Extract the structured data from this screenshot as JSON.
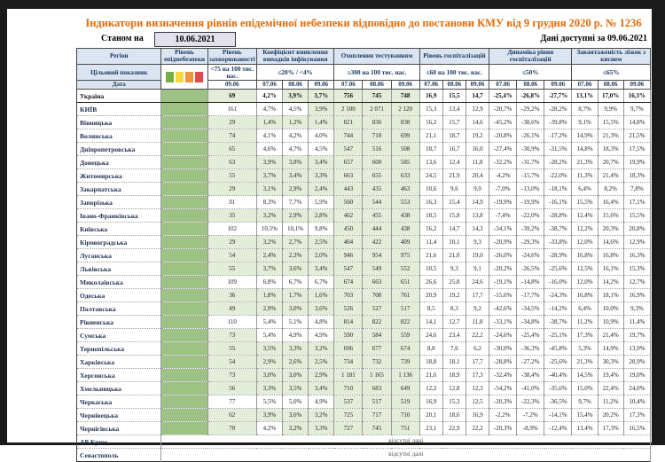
{
  "page": {
    "title": "Індикатори визначення рівнів епідемічної небезпеки відповідно до постанови КМУ від 9 грудня 2020 р. № 1236",
    "as_of_label": "Станом на",
    "as_of_date": "10.06.2021",
    "available_label": "Дані доступні за 09.06.2021"
  },
  "colors": {
    "title_orange": "#e26b0a",
    "header_blue": "#dbe5f1",
    "date_box_lavender": "#e4dfec",
    "epidemic_column_green": "#9dc284",
    "cell_ok_green": "#e3edd9",
    "legend": [
      "#76b041",
      "#f7d842",
      "#f0953c",
      "#dd4b4b"
    ]
  },
  "table": {
    "region_header": "Регіон",
    "target_row_label": "Цільовий показник",
    "date_row_label": "Дата",
    "groups": [
      {
        "title": "Рівень епіднебезпеки",
        "type": "legend"
      },
      {
        "title": "Рівень захворюваності",
        "target": "<75 на 100 тис. нас.",
        "dates": [
          "09.06"
        ]
      },
      {
        "title": "Коефіцієнт виявлення випадків інфікування",
        "target": "≤20% / <4%",
        "dates": [
          "07.06",
          "08.06",
          "09.06"
        ]
      },
      {
        "title": "Охоплення тестуванням",
        "target": "≥300 на 100 тис. нас.",
        "dates": [
          "07.06",
          "08.06",
          "09.06"
        ]
      },
      {
        "title": "Рівень госпіталізацій",
        "target": "≤60 на 100 тис. нас.",
        "dates": [
          "07.06",
          "08.06",
          "09.06"
        ]
      },
      {
        "title": "Динаміка рівня госпіталізацій",
        "target": "≤50%",
        "dates": [
          "07.06",
          "08.06",
          "09.06"
        ]
      },
      {
        "title": "Завантаженість ліжок з киснем",
        "target": "≤65%",
        "dates": [
          "07.06",
          "08.06",
          "09.06"
        ]
      }
    ],
    "rows": [
      {
        "region": "Україна",
        "bold": true,
        "ok": [
          true,
          false,
          true,
          true
        ],
        "values": [
          "69",
          "4,2%",
          "3,9%",
          "3,7%",
          "756",
          "745",
          "748",
          "16,9",
          "15,5",
          "14,7",
          "-25,4%",
          "-26,8%",
          "-27,7%",
          "13,1%",
          "17,0%",
          "16,3%"
        ]
      },
      {
        "region": "КИЇВ",
        "ok": [
          false,
          false,
          false,
          true
        ],
        "values": [
          "161",
          "4,7%",
          "4,5%",
          "3,9%",
          "2 100",
          "2 071",
          "2 120",
          "15,3",
          "13,4",
          "12,9",
          "-20,7%",
          "-29,2%",
          "-28,2%",
          "8,7%",
          "9,9%",
          "9,7%"
        ]
      },
      {
        "region": "Вінницька",
        "ok": [
          true,
          true,
          true,
          true
        ],
        "values": [
          "29",
          "1,4%",
          "1,2%",
          "1,4%",
          "821",
          "836",
          "838",
          "16,2",
          "15,7",
          "14,6",
          "-45,2%",
          "-38,6%",
          "-39,8%",
          "9,1%",
          "15,5%",
          "14,8%"
        ]
      },
      {
        "region": "Волинська",
        "ok": [
          true,
          false,
          false,
          false
        ],
        "values": [
          "74",
          "4,1%",
          "4,2%",
          "4,0%",
          "744",
          "710",
          "699",
          "21,1",
          "18,7",
          "19,2",
          "-20,8%",
          "-26,1%",
          "-17,2%",
          "14,9%",
          "21,3%",
          "21,5%"
        ]
      },
      {
        "region": "Дніпропетровська",
        "ok": [
          true,
          false,
          false,
          false
        ],
        "values": [
          "65",
          "4,6%",
          "4,7%",
          "4,5%",
          "547",
          "516",
          "508",
          "18,7",
          "16,7",
          "16,0",
          "-27,4%",
          "-30,9%",
          "-31,5%",
          "14,8%",
          "18,3%",
          "17,5%"
        ]
      },
      {
        "region": "Донецька",
        "ok": [
          true,
          true,
          true,
          true
        ],
        "values": [
          "63",
          "3,9%",
          "3,8%",
          "3,4%",
          "657",
          "600",
          "585",
          "13,6",
          "12,4",
          "11,8",
          "-32,2%",
          "-31,7%",
          "-28,2%",
          "21,3%",
          "20,7%",
          "19,9%"
        ]
      },
      {
        "region": "Житомирська",
        "ok": [
          true,
          true,
          true,
          true
        ],
        "values": [
          "55",
          "3,7%",
          "3,4%",
          "3,3%",
          "663",
          "655",
          "633",
          "24,5",
          "21,9",
          "20,4",
          "-4,2%",
          "-15,7%",
          "-22,0%",
          "11,3%",
          "21,4%",
          "18,3%"
        ]
      },
      {
        "region": "Закарпатська",
        "ok": [
          true,
          true,
          true,
          true
        ],
        "values": [
          "29",
          "3,1%",
          "2,9%",
          "2,4%",
          "443",
          "435",
          "463",
          "10,6",
          "9,6",
          "9,0",
          "-7,0%",
          "-13,0%",
          "-18,1%",
          "6,4%",
          "8,2%",
          "7,8%"
        ]
      },
      {
        "region": "Запорізька",
        "ok": [
          false,
          false,
          false,
          false
        ],
        "values": [
          "91",
          "8,3%",
          "7,7%",
          "5,9%",
          "560",
          "544",
          "553",
          "16,3",
          "15,4",
          "14,9",
          "-19,9%",
          "-19,9%",
          "-16,1%",
          "15,5%",
          "16,4%",
          "17,1%"
        ]
      },
      {
        "region": "Івано-Франківська",
        "ok": [
          true,
          true,
          true,
          true
        ],
        "values": [
          "35",
          "3,2%",
          "2,9%",
          "2,8%",
          "462",
          "455",
          "438",
          "18,5",
          "15,8",
          "13,8",
          "-7,4%",
          "-22,0%",
          "-28,8%",
          "12,4%",
          "15,6%",
          "15,5%"
        ]
      },
      {
        "region": "Київська",
        "ok": [
          false,
          false,
          false,
          false
        ],
        "values": [
          "102",
          "10,5%",
          "10,1%",
          "9,8%",
          "450",
          "444",
          "438",
          "16,2",
          "14,7",
          "14,3",
          "-34,1%",
          "-39,2%",
          "-38,7%",
          "12,2%",
          "20,3%",
          "20,8%"
        ]
      },
      {
        "region": "Кіровоградська",
        "ok": [
          true,
          true,
          true,
          true
        ],
        "values": [
          "29",
          "3,2%",
          "2,7%",
          "2,5%",
          "404",
          "422",
          "409",
          "11,4",
          "10,1",
          "9,3",
          "-20,9%",
          "-29,3%",
          "-33,8%",
          "12,0%",
          "14,6%",
          "12,9%"
        ]
      },
      {
        "region": "Луганська",
        "ok": [
          true,
          true,
          true,
          true
        ],
        "values": [
          "54",
          "2,4%",
          "2,3%",
          "2,0%",
          "946",
          "954",
          "975",
          "21,6",
          "21,0",
          "19,0",
          "-26,0%",
          "-24,6%",
          "-28,9%",
          "16,8%",
          "16,8%",
          "16,3%"
        ]
      },
      {
        "region": "Львівська",
        "ok": [
          true,
          true,
          true,
          true
        ],
        "values": [
          "55",
          "3,7%",
          "3,6%",
          "3,4%",
          "547",
          "549",
          "552",
          "10,5",
          "9,3",
          "9,1",
          "-20,2%",
          "-26,5%",
          "-25,6%",
          "12,5%",
          "16,1%",
          "15,3%"
        ]
      },
      {
        "region": "Миколаївська",
        "ok": [
          false,
          false,
          false,
          false
        ],
        "values": [
          "109",
          "6,8%",
          "6,7%",
          "6,7%",
          "674",
          "663",
          "651",
          "26,6",
          "25,8",
          "24,6",
          "-19,1%",
          "-14,8%",
          "-16,0%",
          "12,0%",
          "14,2%",
          "12,7%"
        ]
      },
      {
        "region": "Одеська",
        "ok": [
          true,
          true,
          true,
          true
        ],
        "values": [
          "36",
          "1,8%",
          "1,7%",
          "1,6%",
          "703",
          "708",
          "761",
          "20,9",
          "19,2",
          "17,7",
          "-15,6%",
          "-17,7%",
          "-24,3%",
          "16,8%",
          "18,1%",
          "16,9%"
        ]
      },
      {
        "region": "Полтавська",
        "ok": [
          true,
          true,
          true,
          true
        ],
        "values": [
          "49",
          "2,9%",
          "3,0%",
          "3,6%",
          "526",
          "527",
          "517",
          "8,5",
          "8,3",
          "9,2",
          "-42,6%",
          "-34,5%",
          "-14,2%",
          "6,4%",
          "10,0%",
          "9,3%"
        ]
      },
      {
        "region": "Рівненська",
        "ok": [
          false,
          false,
          false,
          false
        ],
        "values": [
          "110",
          "5,4%",
          "5,1%",
          "4,8%",
          "814",
          "822",
          "822",
          "14,1",
          "12,7",
          "11,8",
          "-33,1%",
          "-34,8%",
          "-38,7%",
          "11,2%",
          "10,9%",
          "11,4%"
        ]
      },
      {
        "region": "Сумська",
        "ok": [
          true,
          false,
          false,
          false
        ],
        "values": [
          "73",
          "5,4%",
          "4,9%",
          "4,9%",
          "590",
          "584",
          "559",
          "24,6",
          "23,4",
          "22,2",
          "-24,6%",
          "-25,4%",
          "-25,1%",
          "17,3%",
          "21,4%",
          "19,7%"
        ]
      },
      {
        "region": "Тернопільська",
        "ok": [
          true,
          true,
          true,
          true
        ],
        "values": [
          "55",
          "3,5%",
          "3,3%",
          "3,2%",
          "696",
          "677",
          "674",
          "8,8",
          "7,6",
          "6,2",
          "-30,0%",
          "-36,3%",
          "-45,8%",
          "5,3%",
          "14,9%",
          "13,9%"
        ]
      },
      {
        "region": "Харківська",
        "ok": [
          true,
          true,
          true,
          true
        ],
        "values": [
          "54",
          "2,9%",
          "2,6%",
          "2,5%",
          "734",
          "732",
          "739",
          "18,8",
          "18,1",
          "17,7",
          "-28,8%",
          "-27,2%",
          "-25,6%",
          "21,3%",
          "30,3%",
          "28,9%"
        ]
      },
      {
        "region": "Херсонська",
        "ok": [
          true,
          true,
          true,
          true
        ],
        "values": [
          "73",
          "3,0%",
          "3,0%",
          "2,9%",
          "1 181",
          "1 165",
          "1 136",
          "21,6",
          "18,9",
          "17,3",
          "-32,4%",
          "-38,4%",
          "-40,4%",
          "14,5%",
          "19,4%",
          "19,0%"
        ]
      },
      {
        "region": "Хмельницька",
        "ok": [
          true,
          true,
          true,
          true
        ],
        "values": [
          "56",
          "3,3%",
          "3,5%",
          "3,4%",
          "710",
          "683",
          "649",
          "12,2",
          "12,8",
          "12,3",
          "-54,2%",
          "-41,0%",
          "-35,6%",
          "15,0%",
          "22,4%",
          "24,0%"
        ]
      },
      {
        "region": "Черкаська",
        "ok": [
          false,
          false,
          false,
          false
        ],
        "values": [
          "77",
          "5,5%",
          "5,0%",
          "4,9%",
          "537",
          "517",
          "519",
          "16,9",
          "15,3",
          "12,5",
          "-20,3%",
          "-22,3%",
          "-36,5%",
          "9,7%",
          "11,2%",
          "10,4%"
        ]
      },
      {
        "region": "Чернівецька",
        "ok": [
          true,
          true,
          true,
          true
        ],
        "values": [
          "62",
          "3,9%",
          "3,6%",
          "3,2%",
          "725",
          "717",
          "710",
          "20,1",
          "18,6",
          "16,9",
          "-2,2%",
          "-7,2%",
          "-14,1%",
          "15,4%",
          "20,2%",
          "17,3%"
        ]
      },
      {
        "region": "Чернігівська",
        "ok": [
          true,
          false,
          true,
          true
        ],
        "values": [
          "70",
          "4,2%",
          "3,2%",
          "3,3%",
          "727",
          "745",
          "751",
          "23,1",
          "22,9",
          "22,2",
          "-20,3%",
          "-8,9%",
          "-12,4%",
          "13,4%",
          "17,3%",
          "16,5%"
        ]
      }
    ],
    "no_data_rows": [
      {
        "region": "АР Крим",
        "text": "відсутні дані"
      },
      {
        "region": "Севастополь",
        "text": "відсутні дані"
      }
    ]
  }
}
